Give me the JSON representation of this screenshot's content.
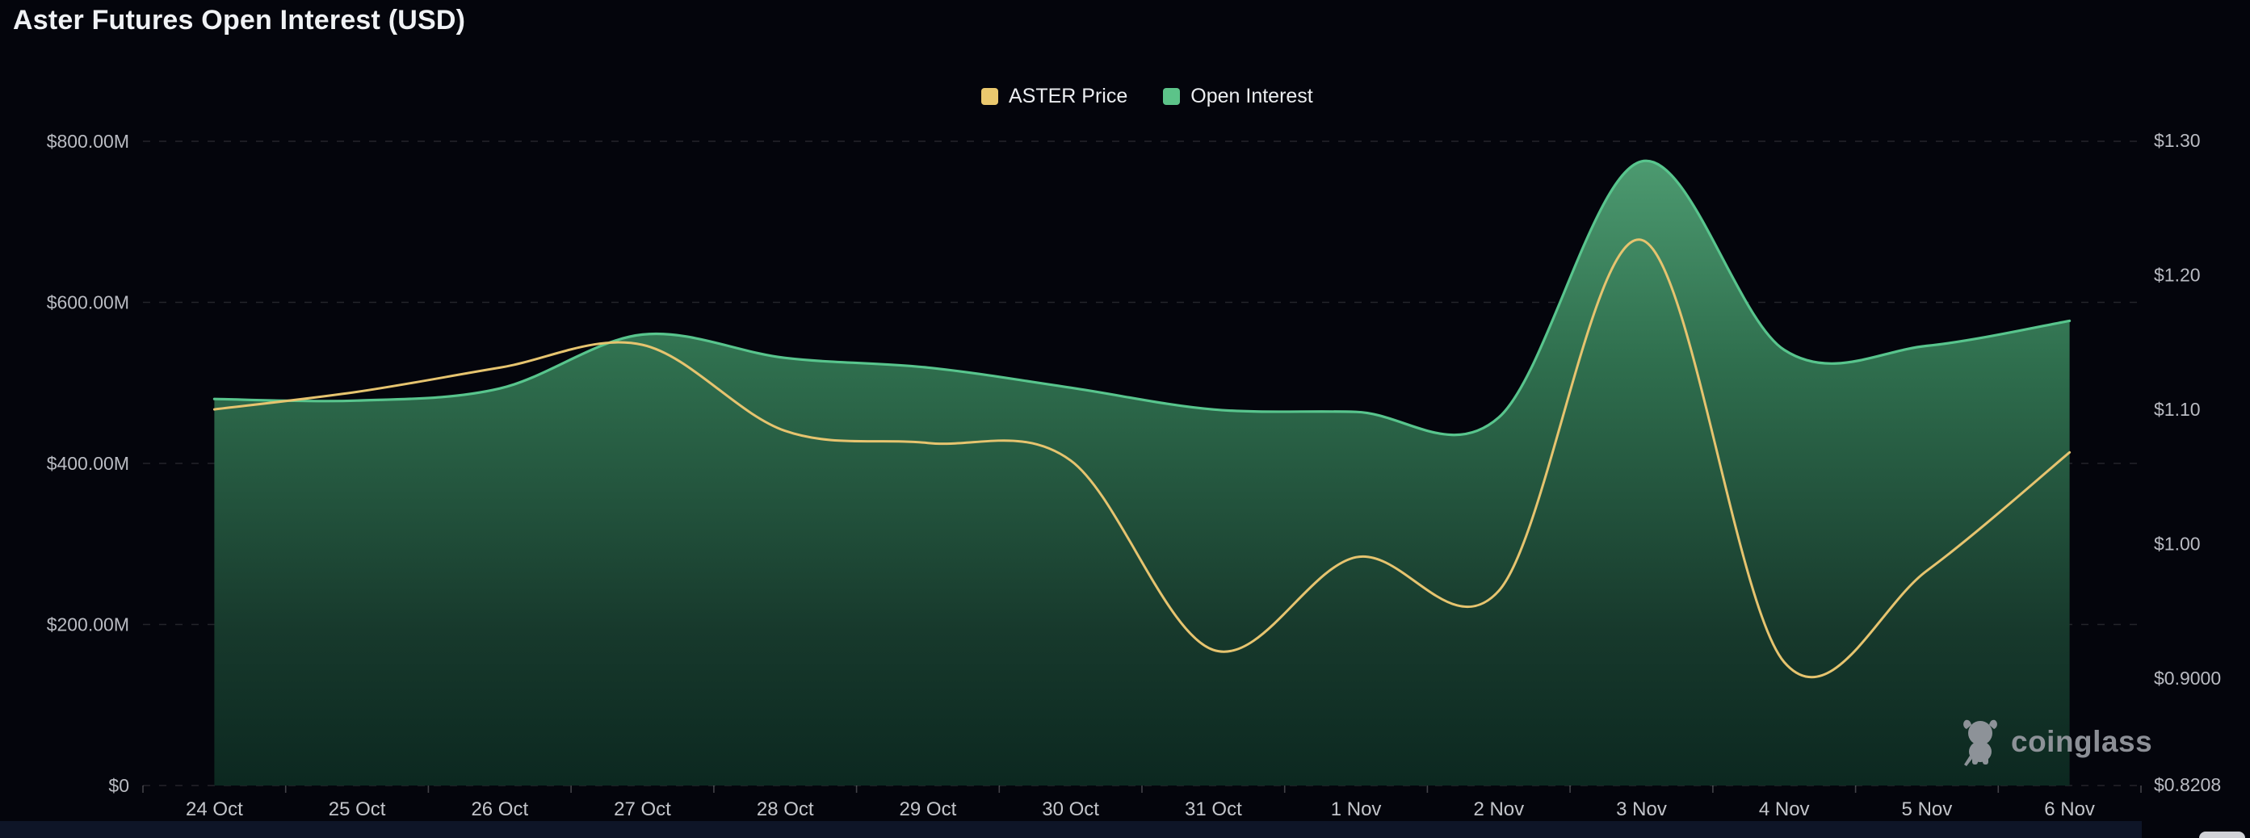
{
  "title": "Aster Futures Open Interest (USD)",
  "legend": {
    "items": [
      {
        "label": "ASTER Price",
        "color": "#eac86e"
      },
      {
        "label": "Open Interest",
        "color": "#5cc389"
      }
    ]
  },
  "watermark": {
    "text": "coinglass",
    "color": "#989ba2"
  },
  "colors": {
    "background": "#04050c",
    "grid": "rgba(255,255,255,0.13)",
    "tick": "rgba(255,255,255,0.25)",
    "axis_text": "#b9bbc2",
    "date_text": "#c3c5ca",
    "price_line": "#e6c46f",
    "oi_line": "#58c58d",
    "oi_fill_top": "#4f9e73",
    "oi_fill_mid": "#2f6f4e",
    "oi_fill_low": "#17392c",
    "oi_fill_bottom": "#0c2820",
    "bottom_strip": "#0e1527"
  },
  "chart_data": {
    "type": "area",
    "title": "Aster Futures Open Interest (USD)",
    "categories": [
      "24 Oct",
      "25 Oct",
      "26 Oct",
      "27 Oct",
      "28 Oct",
      "29 Oct",
      "30 Oct",
      "31 Oct",
      "1 Nov",
      "2 Nov",
      "3 Nov",
      "4 Nov",
      "5 Nov",
      "6 Nov"
    ],
    "series": [
      {
        "name": "ASTER Price",
        "type": "line",
        "axis": "right",
        "color": "#e6c46f",
        "values": [
          1.1,
          1.113,
          1.131,
          1.148,
          1.084,
          1.075,
          1.062,
          0.921,
          0.99,
          0.965,
          1.226,
          0.912,
          0.98,
          1.068
        ]
      },
      {
        "name": "Open Interest",
        "type": "area",
        "axis": "left",
        "color": "#58c58d",
        "values": [
          480,
          478,
          493,
          560,
          531,
          519,
          494,
          467,
          464,
          457,
          775,
          541,
          546,
          577
        ]
      }
    ],
    "left_axis": {
      "min": 0,
      "max": 800,
      "unit": "USD millions",
      "ticks": [
        {
          "value": 800,
          "label": "$800.00M"
        },
        {
          "value": 600,
          "label": "$600.00M"
        },
        {
          "value": 400,
          "label": "$400.00M"
        },
        {
          "value": 200,
          "label": "$200.00M"
        },
        {
          "value": 0,
          "label": "$0"
        }
      ]
    },
    "right_axis": {
      "min": 0.8208,
      "max": 1.3,
      "unit": "USD",
      "ticks": [
        {
          "value": 1.3,
          "label": "$1.30"
        },
        {
          "value": 1.2,
          "label": "$1.20"
        },
        {
          "value": 1.1,
          "label": "$1.10"
        },
        {
          "value": 1.0,
          "label": "$1.00"
        },
        {
          "value": 0.9,
          "label": "$0.9000"
        },
        {
          "value": 0.8208,
          "label": "$0.8208"
        }
      ]
    },
    "grid": {
      "horizontal_dashed": true
    },
    "legend_position": "top-center"
  }
}
